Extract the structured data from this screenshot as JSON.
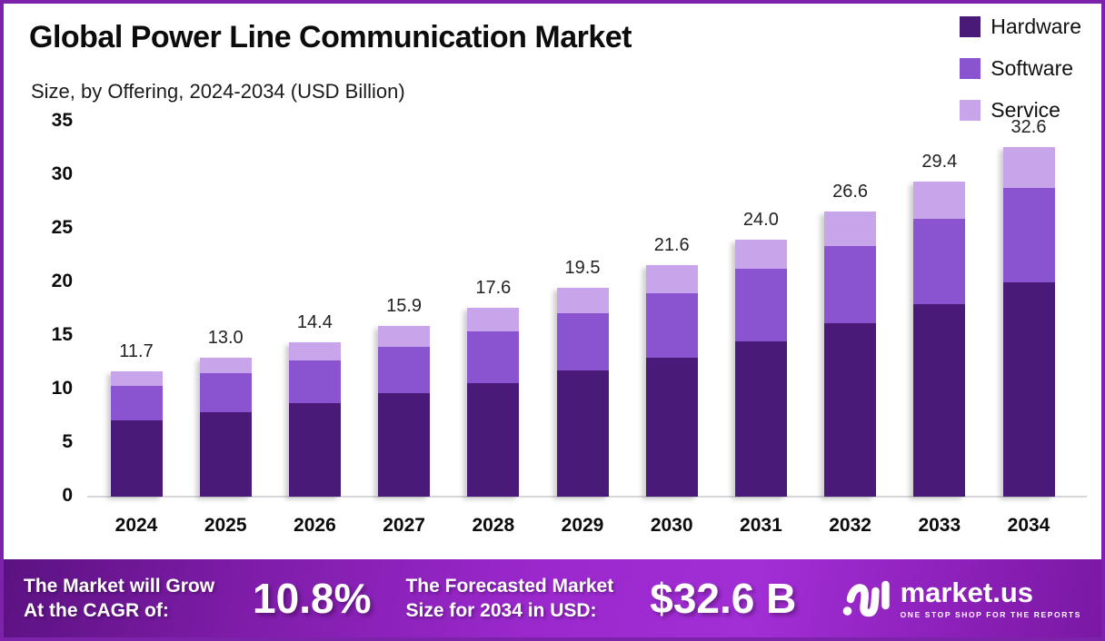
{
  "title": "Global Power Line Communication Market",
  "subtitle": "Size, by Offering, 2024-2034 (USD Billion)",
  "legend": [
    {
      "label": "Hardware",
      "color": "#4a1a78"
    },
    {
      "label": "Software",
      "color": "#8a53cf"
    },
    {
      "label": "Service",
      "color": "#c8a4ea"
    }
  ],
  "chart_data": {
    "type": "bar",
    "stacked": true,
    "title": "Global Power Line Communication Market Size, by Offering, 2024-2034 (USD Billion)",
    "categories": [
      "2024",
      "2025",
      "2026",
      "2027",
      "2028",
      "2029",
      "2030",
      "2031",
      "2032",
      "2033",
      "2034"
    ],
    "series": [
      {
        "name": "Hardware",
        "color": "#4a1a78",
        "values": [
          7.1,
          7.9,
          8.7,
          9.7,
          10.6,
          11.8,
          13.0,
          14.5,
          16.2,
          18.0,
          20.0
        ]
      },
      {
        "name": "Software",
        "color": "#8a53cf",
        "values": [
          3.2,
          3.6,
          4.0,
          4.3,
          4.8,
          5.3,
          6.0,
          6.8,
          7.2,
          7.9,
          8.8
        ]
      },
      {
        "name": "Service",
        "color": "#c8a4ea",
        "values": [
          1.4,
          1.5,
          1.7,
          1.9,
          2.2,
          2.4,
          2.6,
          2.7,
          3.2,
          3.5,
          3.8
        ]
      }
    ],
    "totals": [
      "11.7",
      "13.0",
      "14.4",
      "15.9",
      "17.6",
      "19.5",
      "21.6",
      "24.0",
      "26.6",
      "29.4",
      "32.6"
    ],
    "xlabel": "",
    "ylabel": "USD Billion",
    "ylim": [
      0,
      35
    ],
    "yticks": [
      0,
      5,
      10,
      15,
      20,
      25,
      30,
      35
    ],
    "grid": false,
    "legend_position": "top-right"
  },
  "banner": {
    "cagr_label_line1": "The Market will Grow",
    "cagr_label_line2": "At the CAGR of:",
    "cagr_value": "10.8%",
    "forecast_label_line1": "The Forecasted Market",
    "forecast_label_line2": "Size for 2034 in USD:",
    "forecast_value": "$32.6 B",
    "brand_name": "market.us",
    "brand_tagline": "ONE STOP SHOP FOR THE REPORTS"
  },
  "colors": {
    "frame_border": "#7d22aa",
    "banner_gradient_start": "#5c1282",
    "banner_gradient_mid": "#a22ed6",
    "baseline": "#d8d6da",
    "text": "#0c0c0c"
  }
}
